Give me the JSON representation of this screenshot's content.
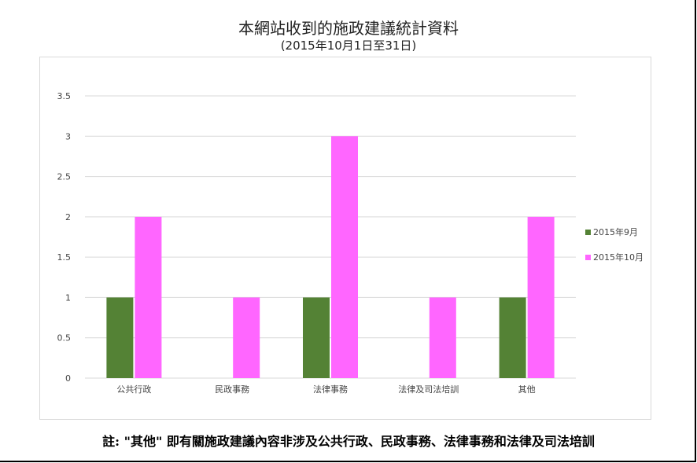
{
  "colors": {
    "series_sep": "#548235",
    "series_oct": "#ff66ff",
    "grid": "#d9d9d9",
    "border": "#d9d9d9"
  },
  "chart_data": {
    "type": "bar",
    "title": "本網站收到的施政建議統計資料",
    "subtitle": "(2015年10月1日至31日)",
    "categories": [
      "公共行政",
      "民政事務",
      "法律事務",
      "法律及司法培訓",
      "其他"
    ],
    "series": [
      {
        "name": "2015年9月",
        "values": [
          1,
          0,
          1,
          0,
          1
        ],
        "color": "#548235"
      },
      {
        "name": "2015年10月",
        "values": [
          2,
          1,
          3,
          1,
          2
        ],
        "color": "#ff66ff"
      }
    ],
    "yticks": [
      "0",
      "0.5",
      "1",
      "1.5",
      "2",
      "2.5",
      "3",
      "3.5"
    ],
    "ylim": [
      0,
      3.5
    ],
    "grid": true,
    "legend_position": "right"
  },
  "footnote": "註: \"其他\" 即有關施政建議內容非涉及公共行政、民政事務、法律事務和法律及司法培訓"
}
